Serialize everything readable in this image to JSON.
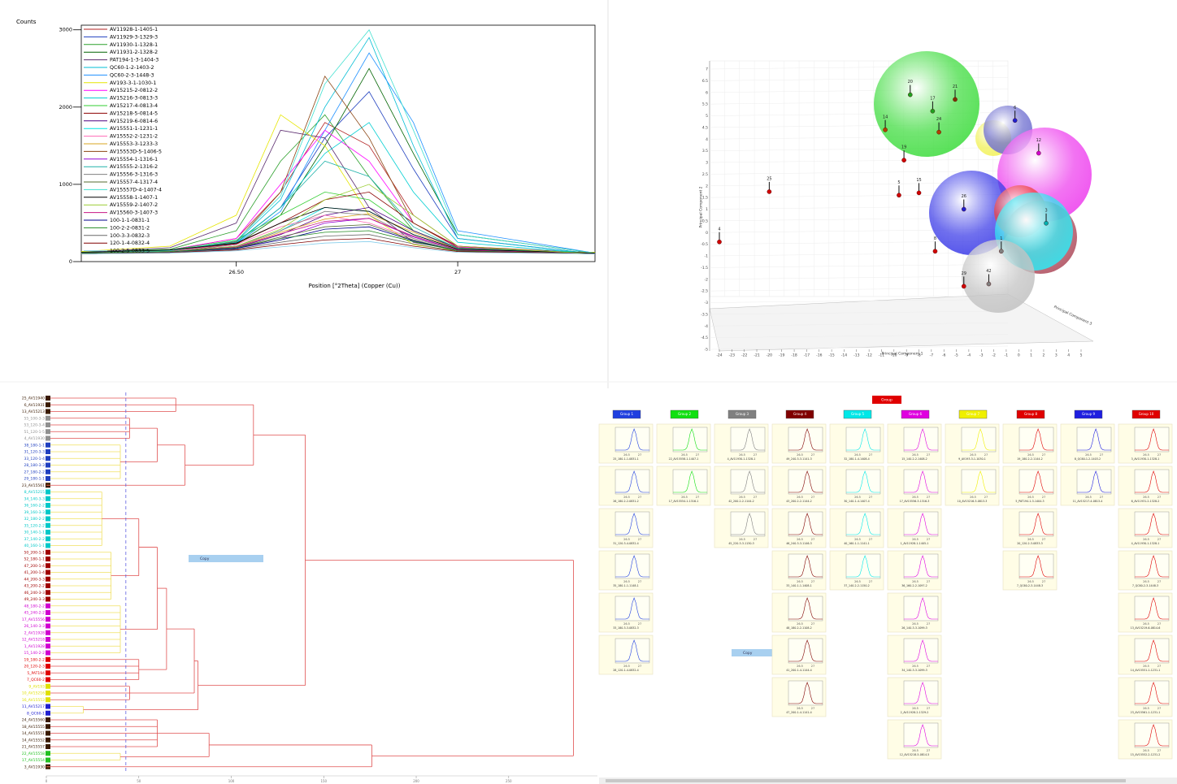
{
  "chart_data": [
    {
      "type": "line",
      "y_label": "Counts",
      "x_label": "Position [°2Theta] (Copper (Cu))",
      "x": [
        26.15,
        26.35,
        26.5,
        26.6,
        26.7,
        26.8,
        26.9,
        27.0,
        27.31
      ],
      "xlim": [
        26.15,
        27.31
      ],
      "ylim": [
        0,
        3060
      ],
      "xticks": [
        {
          "value": 26.5,
          "label": "26.50"
        },
        27
      ],
      "yticks": [
        0,
        1000,
        2000,
        3000
      ],
      "series": [
        {
          "name": "AV11928-1-1405-1",
          "color": "#b22222",
          "values": [
            120,
            150,
            300,
            900,
            1800,
            1500,
            600,
            200,
            110
          ]
        },
        {
          "name": "AV11929-3-1329-3",
          "color": "#1f3fbf",
          "values": [
            110,
            140,
            250,
            700,
            1600,
            2200,
            1200,
            300,
            100
          ]
        },
        {
          "name": "AV11930-1-1328-1",
          "color": "#2ca02c",
          "values": [
            130,
            160,
            400,
            1300,
            1900,
            1100,
            400,
            180,
            120
          ]
        },
        {
          "name": "AV11931-2-1328-2",
          "color": "#006400",
          "values": [
            100,
            130,
            220,
            600,
            1500,
            2500,
            1400,
            350,
            110
          ]
        },
        {
          "name": "PAT194-1-3-1404-3",
          "color": "#5b2c6f",
          "values": [
            120,
            180,
            500,
            1700,
            1600,
            700,
            250,
            150,
            120
          ]
        },
        {
          "name": "QC60-1-2-1403-2",
          "color": "#00bcd4",
          "values": [
            110,
            140,
            260,
            800,
            2000,
            2900,
            1500,
            300,
            100
          ]
        },
        {
          "name": "QC60-2-3-1448-3",
          "color": "#1e90ff",
          "values": [
            100,
            130,
            230,
            650,
            1700,
            2700,
            1800,
            400,
            110
          ]
        },
        {
          "name": "AV193-3-1-1030-1",
          "color": "#e6e600",
          "values": [
            130,
            200,
            600,
            1900,
            1500,
            600,
            220,
            140,
            120
          ]
        },
        {
          "name": "AV15215-2-0812-2",
          "color": "#ff00ff",
          "values": [
            110,
            150,
            300,
            1000,
            1700,
            1300,
            500,
            190,
            110
          ]
        },
        {
          "name": "AV15216-3-0813-3",
          "color": "#00ced1",
          "values": [
            100,
            130,
            240,
            700,
            1400,
            1800,
            900,
            250,
            100
          ]
        },
        {
          "name": "AV15217-4-0813-4",
          "color": "#32cd32",
          "values": [
            120,
            150,
            280,
            600,
            900,
            800,
            400,
            180,
            110
          ]
        },
        {
          "name": "AV15218-5-0814-5",
          "color": "#8b0000",
          "values": [
            110,
            140,
            230,
            500,
            800,
            900,
            500,
            200,
            100
          ]
        },
        {
          "name": "AV15219-6-0814-6",
          "color": "#4b0082",
          "values": [
            100,
            120,
            180,
            350,
            600,
            700,
            400,
            170,
            100
          ]
        },
        {
          "name": "AV15551-1-1231-1",
          "color": "#00e5e5",
          "values": [
            110,
            130,
            200,
            400,
            700,
            650,
            350,
            160,
            100
          ]
        },
        {
          "name": "AV15552-2-1231-2",
          "color": "#ff69b4",
          "values": [
            120,
            140,
            220,
            450,
            600,
            500,
            300,
            150,
            110
          ]
        },
        {
          "name": "AV15553-3-1233-3",
          "color": "#daa520",
          "values": [
            100,
            130,
            190,
            380,
            550,
            620,
            380,
            160,
            100
          ]
        },
        {
          "name": "AV15553D-5-1406-5",
          "color": "#8b4513",
          "values": [
            110,
            140,
            260,
            900,
            2400,
            1600,
            500,
            180,
            100
          ]
        },
        {
          "name": "AV15554-1-1316-1",
          "color": "#9400d3",
          "values": [
            100,
            120,
            170,
            300,
            500,
            560,
            320,
            150,
            100
          ]
        },
        {
          "name": "AV15555-2-1316-2",
          "color": "#20b2aa",
          "values": [
            120,
            150,
            250,
            700,
            1300,
            1100,
            450,
            170,
            110
          ]
        },
        {
          "name": "AV15556-3-1316-3",
          "color": "#808080",
          "values": [
            110,
            130,
            200,
            400,
            650,
            600,
            300,
            150,
            100
          ]
        },
        {
          "name": "AV15557-4-1317-4",
          "color": "#556b2f",
          "values": [
            100,
            120,
            180,
            320,
            450,
            480,
            280,
            140,
            100
          ]
        },
        {
          "name": "AV15557D-4-1407-4",
          "color": "#40e0d0",
          "values": [
            110,
            140,
            270,
            850,
            2300,
            3000,
            1700,
            350,
            110
          ]
        },
        {
          "name": "AV15558-1-1407-1",
          "color": "#000000",
          "values": [
            120,
            150,
            240,
            500,
            700,
            650,
            350,
            160,
            110
          ]
        },
        {
          "name": "AV15559-2-1407-2",
          "color": "#9acd32",
          "values": [
            100,
            130,
            200,
            420,
            800,
            1000,
            600,
            200,
            100
          ]
        },
        {
          "name": "AV15560-3-1407-3",
          "color": "#c71585",
          "values": [
            110,
            130,
            190,
            360,
            520,
            560,
            330,
            150,
            100
          ]
        },
        {
          "name": "100-1-1-0831-1",
          "color": "#00008b",
          "values": [
            100,
            120,
            170,
            280,
            420,
            450,
            270,
            140,
            100
          ]
        },
        {
          "name": "100-2-2-0831-2",
          "color": "#228b22",
          "values": [
            110,
            130,
            180,
            300,
            380,
            400,
            260,
            140,
            100
          ]
        },
        {
          "name": "100-3-3-0832-3",
          "color": "#696969",
          "values": [
            100,
            120,
            160,
            250,
            330,
            350,
            230,
            130,
            100
          ]
        },
        {
          "name": "120-1-4-0832-4",
          "color": "#800000",
          "values": [
            100,
            115,
            150,
            220,
            280,
            300,
            200,
            130,
            100
          ]
        },
        {
          "name": "100-2-5-0833-5",
          "color": "#87ceeb",
          "values": [
            100,
            110,
            140,
            190,
            240,
            260,
            180,
            120,
            100
          ]
        }
      ]
    },
    {
      "type": "scatter3d",
      "x_label": "Principal Component 1",
      "y_label": "Principal Component 2",
      "z_label": "Principal Component 3",
      "xlim": [
        -24,
        5
      ],
      "ylim": [
        -5,
        7
      ],
      "xticks": [
        -24,
        -23,
        -22,
        -21,
        -20,
        -19,
        -18,
        -17,
        -16,
        -15,
        -14,
        -13,
        -12,
        -11,
        -10,
        -9,
        -8,
        -7,
        -6,
        -5,
        -4,
        -3,
        -2,
        -1,
        0,
        1,
        2,
        3,
        4,
        5
      ],
      "yticks": [
        -5,
        -4.5,
        -4,
        -3.5,
        -3,
        -2.5,
        -2,
        -1.5,
        -1,
        -0.5,
        0,
        0.5,
        1,
        1.5,
        2,
        2.5,
        3,
        3.5,
        4,
        4.5,
        5,
        5.5,
        6,
        6.5,
        7
      ],
      "points": [
        {
          "label": "4",
          "x": -24,
          "y": -0.4,
          "color": "#d00000"
        },
        {
          "label": "25",
          "x": -20,
          "y": 1.75,
          "color": "#d00000"
        },
        {
          "label": "5",
          "x": -9.6,
          "y": 1.6,
          "color": "#d00000"
        },
        {
          "label": "15",
          "x": -8,
          "y": 1.7,
          "color": "#d00000"
        },
        {
          "label": "19",
          "x": -9.2,
          "y": 3.1,
          "color": "#d00000"
        },
        {
          "label": "14",
          "x": -10.7,
          "y": 4.4,
          "color": "#b04000"
        },
        {
          "label": "20",
          "x": -8.7,
          "y": 5.9,
          "color": "#20a020"
        },
        {
          "label": "17",
          "x": -6.9,
          "y": 5.2,
          "color": "#20a020"
        },
        {
          "label": "24",
          "x": -6.4,
          "y": 4.3,
          "color": "#b04000"
        },
        {
          "label": "21",
          "x": -5.1,
          "y": 5.7,
          "color": "#803000"
        },
        {
          "label": "6",
          "x": -0.3,
          "y": 4.8,
          "color": "#2020d0"
        },
        {
          "label": "12",
          "x": 1.6,
          "y": 3.4,
          "color": "#d000d0"
        },
        {
          "label": "26",
          "x": -4.4,
          "y": 1.0,
          "color": "#2020d0"
        },
        {
          "label": "3",
          "x": 2.2,
          "y": 0.4,
          "color": "#00b0b0"
        },
        {
          "label": "8",
          "x": -6.7,
          "y": -0.8,
          "color": "#d00000"
        },
        {
          "label": "29",
          "x": -4.4,
          "y": -2.3,
          "color": "#d00000"
        },
        {
          "label": "42",
          "x": -2.4,
          "y": -2.2,
          "color": "#808080"
        },
        {
          "label": "1",
          "x": -1.4,
          "y": -0.8,
          "color": "#808080"
        }
      ]
    },
    {
      "type": "dendrogram",
      "xlim": [
        0,
        298
      ],
      "xticks": [
        0,
        50,
        100,
        150,
        200,
        250
      ],
      "cutoff": 43,
      "groups": [
        {
          "color": "#3a1a00",
          "height": 70,
          "leaves": [
            "25_AV11940",
            "6_AV11931",
            "13_AV15213"
          ]
        },
        {
          "color": "#909090",
          "height": 45,
          "leaves": [
            "55_100-3-3",
            "53_120-3-4",
            "51_120-1-5",
            "4_AV11930"
          ]
        },
        {
          "color": "#2040c0",
          "height": 40,
          "leaves": [
            "38_180-1-1",
            "31_120-3-3",
            "33_120-1-4",
            "28_180-3-3",
            "27_180-2-2",
            "29_180-1-1"
          ]
        },
        {
          "color": "#3a1a00",
          "height": 0,
          "leaves": [
            "23_AV15561"
          ]
        },
        {
          "color": "#00c8c8",
          "height": 30,
          "leaves": [
            "8_AV15215",
            "34_140-3-3",
            "36_160-2-2",
            "39_160-3-3",
            "32_180-2-2",
            "35_120-2-2",
            "30_140-1-1",
            "37_140-2-2",
            "40_160-1-1"
          ]
        },
        {
          "color": "#a00000",
          "height": 35,
          "leaves": [
            "50_200-1-1",
            "52_180-1-1",
            "47_200-1-4",
            "41_200-1-4",
            "44_200-3-3",
            "43_200-2-2",
            "46_240-3-3",
            "49_240-3-3"
          ]
        },
        {
          "color": "#d000d0",
          "height": 40,
          "leaves": [
            "48_180-2-2",
            "45_240-2-2",
            "17_AV15556",
            "26_140-3-3",
            "2_AV11928",
            "12_AV15218",
            "1_AV11928",
            "15_140-2-2"
          ]
        },
        {
          "color": "#e00000",
          "height": 50,
          "leaves": [
            "19_180-2-2",
            "20_120-2-3",
            "5_PAT194",
            "7_QC60-2"
          ]
        },
        {
          "color": "#e0e000",
          "height": 45,
          "leaves": [
            "9_AV193",
            "10_AV15216",
            "16_AV15553"
          ]
        },
        {
          "color": "#2020d0",
          "height": 20,
          "leaves": [
            "11_AV15217",
            "8_QC60-1"
          ]
        },
        {
          "color": "#3a1a00",
          "height": 60,
          "leaves": [
            "24_AV15560",
            "18_AV15555",
            "14_AV15551",
            "14_AV15552",
            "21_AV15557"
          ]
        },
        {
          "color": "#20c020",
          "height": 40,
          "leaves": [
            "22_AV15558",
            "17_AV15554"
          ]
        },
        {
          "color": "#3a1a00",
          "height": 0,
          "leaves": [
            "3_AV11930"
          ]
        }
      ],
      "merges": [
        [
          1,
          2,
          60
        ],
        [
          13,
          3,
          75
        ],
        [
          0,
          14,
          112
        ],
        [
          4,
          5,
          50
        ],
        [
          16,
          6,
          60
        ],
        [
          17,
          7,
          65
        ],
        [
          18,
          8,
          80
        ],
        [
          19,
          9,
          82
        ],
        [
          15,
          20,
          140
        ],
        [
          10,
          11,
          88
        ],
        [
          22,
          12,
          176
        ],
        [
          21,
          23,
          285
        ]
      ]
    }
  ],
  "copy_label": "Copy",
  "cluster_view": {
    "title": "Group",
    "thumb_xticks": [
      26.5,
      27
    ],
    "columns": [
      {
        "name": "Group 1",
        "color": "#1f3fe0",
        "cells": [
          "25_180-1-1-0831-1",
          "26_180-2-2-0831-2",
          "31_120-3-4-0832-4",
          "35_180-1-1-1148-1",
          "33_180-3-3-0832-3",
          "28_120-1-4-0832-4"
        ]
      },
      {
        "name": "Group 2",
        "color": "#10e010",
        "cells": [
          "22_AV15558-1-1407-1",
          "17_AV15554-1-1316-1"
        ]
      },
      {
        "name": "Group 3",
        "color": "#808080",
        "cells": [
          "4_AV11930-1-1328-1",
          "42_200-2-2-1144-2",
          "45_220-3-3-1130-3"
        ]
      },
      {
        "name": "Group 4",
        "color": "#800000",
        "cells": [
          "49_240-3-3-1141-3",
          "43_200-2-2-1144-2",
          "46_240-3-3-1146-3",
          "33_140-1-1-1408-1",
          "48_180-2-2-1108-2",
          "41_200-1-4-1144-4",
          "47_200-1-4-1141-4"
        ]
      },
      {
        "name": "Group 5",
        "color": "#00e8e8",
        "cells": [
          "32_180-1-4-1408-4",
          "30_140-1-4-1407-4",
          "40_160-1-1-1141-1",
          "37_140-2-2-1150-2"
        ]
      },
      {
        "name": "Group 6",
        "color": "#e000e0",
        "cells": [
          "15_140-2-2-1408-2",
          "17_AV15556-3-1316-3",
          "1_AV11928-1-1405-1",
          "36_160-2-2-1097-2",
          "26_140-3-3-1099-3",
          "34_140-3-3-1099-3",
          "2_AV11928-2-1329-2",
          "12_AV15218-5-0814-5"
        ]
      },
      {
        "name": "Group 7",
        "color": "#f0f000",
        "cells": [
          "9_AV193-3-1-1030-1",
          "10_AV15216-3-0813-3"
        ]
      },
      {
        "name": "Group 8",
        "color": "#e00000",
        "cells": [
          "19_180-2-2-1144-2",
          "5_PAT194-1-3-1404-3",
          "20_120-2-3-0833-3",
          "7_QC60-2-3-1448-3"
        ]
      },
      {
        "name": "Group 9",
        "color": "#1f1fe0",
        "cells": [
          "8_QC60-1-2-1403-2",
          "11_AV15217-4-0813-4"
        ]
      },
      {
        "name": "Group 10",
        "color": "#e00000",
        "cells": [
          "3_AV11930-1-1328-1",
          "6_AV11931-2-1328-2",
          "4_AV11930-1-1328-1",
          "7_QC60-2-3-1448-3",
          "13_AV15219-6-0814-6",
          "14_AV15551-1-1231-1",
          "23_AV15561-1-1231-1",
          "15_AV15552-2-1231-2"
        ]
      }
    ]
  }
}
